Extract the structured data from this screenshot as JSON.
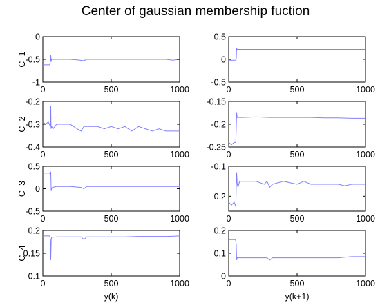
{
  "chart_data": {
    "type": "line",
    "title": "Center of gaussian membership fuction",
    "line_color": "#8080ff",
    "xlim": [
      0,
      1000
    ],
    "x_ticks": [
      "0",
      "500",
      "1000"
    ],
    "columns": [
      {
        "xlabel": "y(k)"
      },
      {
        "xlabel": "y(k+1)"
      }
    ],
    "panels": [
      {
        "row": 0,
        "col": 0,
        "ylabel": "C=1",
        "ylim": [
          -1,
          0
        ],
        "y_ticks": [
          "-1",
          "-0.5",
          "0"
        ],
        "points": [
          [
            0,
            -0.62
          ],
          [
            50,
            -0.62
          ],
          [
            55,
            -0.55
          ],
          [
            58,
            -0.4
          ],
          [
            61,
            -0.55
          ],
          [
            64,
            -0.5
          ],
          [
            100,
            -0.5
          ],
          [
            150,
            -0.5
          ],
          [
            200,
            -0.5
          ],
          [
            250,
            -0.51
          ],
          [
            300,
            -0.53
          ],
          [
            320,
            -0.5
          ],
          [
            400,
            -0.5
          ],
          [
            500,
            -0.5
          ],
          [
            600,
            -0.5
          ],
          [
            700,
            -0.5
          ],
          [
            800,
            -0.5
          ],
          [
            900,
            -0.5
          ],
          [
            950,
            -0.52
          ],
          [
            1000,
            -0.5
          ]
        ]
      },
      {
        "row": 0,
        "col": 1,
        "ylabel": "",
        "ylim": [
          -0.5,
          0.5
        ],
        "y_ticks": [
          "-0.5",
          "0",
          "0.5"
        ],
        "points": [
          [
            0,
            -0.02
          ],
          [
            50,
            -0.02
          ],
          [
            55,
            0.0
          ],
          [
            58,
            0.24
          ],
          [
            62,
            0.22
          ],
          [
            100,
            0.22
          ],
          [
            300,
            0.22
          ],
          [
            500,
            0.22
          ],
          [
            700,
            0.22
          ],
          [
            1000,
            0.22
          ]
        ]
      },
      {
        "row": 1,
        "col": 0,
        "ylabel": "C=2",
        "ylim": [
          -0.4,
          -0.2
        ],
        "y_ticks": [
          "-0.4",
          "-0.3",
          "-0.2"
        ],
        "points": [
          [
            0,
            -0.29
          ],
          [
            20,
            -0.3
          ],
          [
            40,
            -0.29
          ],
          [
            55,
            -0.31
          ],
          [
            58,
            -0.22
          ],
          [
            60,
            -0.32
          ],
          [
            64,
            -0.31
          ],
          [
            75,
            -0.32
          ],
          [
            100,
            -0.3
          ],
          [
            200,
            -0.3
          ],
          [
            250,
            -0.32
          ],
          [
            280,
            -0.33
          ],
          [
            300,
            -0.31
          ],
          [
            400,
            -0.31
          ],
          [
            450,
            -0.32
          ],
          [
            500,
            -0.31
          ],
          [
            550,
            -0.32
          ],
          [
            600,
            -0.31
          ],
          [
            650,
            -0.33
          ],
          [
            700,
            -0.31
          ],
          [
            750,
            -0.32
          ],
          [
            800,
            -0.33
          ],
          [
            850,
            -0.32
          ],
          [
            900,
            -0.33
          ],
          [
            950,
            -0.33
          ],
          [
            1000,
            -0.33
          ]
        ]
      },
      {
        "row": 1,
        "col": 1,
        "ylabel": "",
        "ylim": [
          -0.25,
          -0.15
        ],
        "y_ticks": [
          "-0.25",
          "-0.2",
          "-0.15"
        ],
        "points": [
          [
            0,
            -0.24
          ],
          [
            20,
            -0.245
          ],
          [
            40,
            -0.24
          ],
          [
            52,
            -0.24
          ],
          [
            55,
            -0.21
          ],
          [
            58,
            -0.175
          ],
          [
            62,
            -0.185
          ],
          [
            100,
            -0.185
          ],
          [
            200,
            -0.184
          ],
          [
            300,
            -0.185
          ],
          [
            400,
            -0.185
          ],
          [
            500,
            -0.185
          ],
          [
            600,
            -0.185
          ],
          [
            700,
            -0.186
          ],
          [
            800,
            -0.186
          ],
          [
            900,
            -0.187
          ],
          [
            1000,
            -0.187
          ]
        ]
      },
      {
        "row": 2,
        "col": 0,
        "ylabel": "C=3",
        "ylim": [
          -0.5,
          0.5
        ],
        "y_ticks": [
          "-0.5",
          "0",
          "0.5"
        ],
        "points": [
          [
            0,
            0.35
          ],
          [
            50,
            0.35
          ],
          [
            55,
            0.3
          ],
          [
            58,
            0.38
          ],
          [
            61,
            -0.05
          ],
          [
            64,
            0.0
          ],
          [
            70,
            0.03
          ],
          [
            100,
            0.05
          ],
          [
            200,
            0.05
          ],
          [
            280,
            0.03
          ],
          [
            300,
            0.0
          ],
          [
            320,
            0.05
          ],
          [
            400,
            0.05
          ],
          [
            500,
            0.05
          ],
          [
            600,
            0.05
          ],
          [
            700,
            0.05
          ],
          [
            800,
            0.05
          ],
          [
            900,
            0.05
          ],
          [
            1000,
            0.05
          ]
        ]
      },
      {
        "row": 2,
        "col": 1,
        "ylabel": "",
        "ylim": [
          -0.25,
          -0.1
        ],
        "y_ticks": [
          "-0.2",
          "-0.1"
        ],
        "points": [
          [
            0,
            -0.22
          ],
          [
            20,
            -0.23
          ],
          [
            40,
            -0.22
          ],
          [
            52,
            -0.235
          ],
          [
            55,
            -0.17
          ],
          [
            58,
            -0.12
          ],
          [
            62,
            -0.16
          ],
          [
            68,
            -0.17
          ],
          [
            80,
            -0.15
          ],
          [
            100,
            -0.15
          ],
          [
            200,
            -0.15
          ],
          [
            260,
            -0.16
          ],
          [
            280,
            -0.15
          ],
          [
            300,
            -0.17
          ],
          [
            320,
            -0.16
          ],
          [
            400,
            -0.15
          ],
          [
            500,
            -0.16
          ],
          [
            550,
            -0.15
          ],
          [
            600,
            -0.16
          ],
          [
            700,
            -0.16
          ],
          [
            800,
            -0.16
          ],
          [
            850,
            -0.165
          ],
          [
            900,
            -0.16
          ],
          [
            1000,
            -0.16
          ]
        ]
      },
      {
        "row": 3,
        "col": 0,
        "ylabel": "C=4",
        "ylim": [
          0.1,
          0.2
        ],
        "y_ticks": [
          "0.1",
          "0.15",
          "0.2"
        ],
        "points": [
          [
            0,
            0.188
          ],
          [
            50,
            0.188
          ],
          [
            55,
            0.18
          ],
          [
            58,
            0.135
          ],
          [
            61,
            0.18
          ],
          [
            64,
            0.185
          ],
          [
            100,
            0.186
          ],
          [
            200,
            0.186
          ],
          [
            280,
            0.186
          ],
          [
            300,
            0.18
          ],
          [
            320,
            0.186
          ],
          [
            400,
            0.186
          ],
          [
            500,
            0.186
          ],
          [
            600,
            0.186
          ],
          [
            700,
            0.187
          ],
          [
            800,
            0.187
          ],
          [
            900,
            0.187
          ],
          [
            1000,
            0.188
          ]
        ]
      },
      {
        "row": 3,
        "col": 1,
        "ylabel": "",
        "ylim": [
          0,
          0.2
        ],
        "y_ticks": [
          "0",
          "0.1",
          "0.2"
        ],
        "points": [
          [
            0,
            0.16
          ],
          [
            50,
            0.16
          ],
          [
            55,
            0.14
          ],
          [
            58,
            0.07
          ],
          [
            62,
            0.08
          ],
          [
            100,
            0.08
          ],
          [
            200,
            0.08
          ],
          [
            280,
            0.08
          ],
          [
            300,
            0.07
          ],
          [
            320,
            0.08
          ],
          [
            400,
            0.08
          ],
          [
            500,
            0.08
          ],
          [
            600,
            0.08
          ],
          [
            700,
            0.08
          ],
          [
            800,
            0.08
          ],
          [
            900,
            0.085
          ],
          [
            1000,
            0.085
          ]
        ]
      }
    ]
  }
}
